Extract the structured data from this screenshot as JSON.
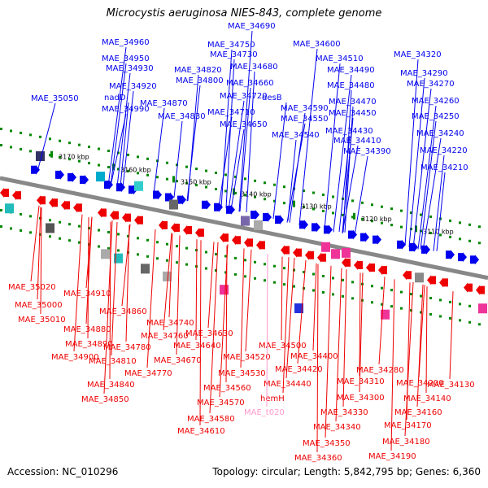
{
  "title": "Microcystis aeruginosa NIES-843, complete genome",
  "accession": "Accession: NC_010296",
  "stats": "Topology: circular; Length: 5,842,795 bp; Genes: 6,360",
  "colors": {
    "forward": "#0000ee",
    "reverse": "#ee0000",
    "rna": "#ff99cc",
    "backbone": "#888888",
    "tick": "#008800"
  },
  "scale_labels": [
    "3170 kbp",
    "3160 kbp",
    "3150 kbp",
    "3140 kbp",
    "3130 kbp",
    "3120 kbp",
    "3110 kbp"
  ],
  "top_labels": [
    "MAE_34960",
    "MAE_34950",
    "MAE_34930",
    "MAE_34920",
    "nadD",
    "MAE_35050",
    "MAE_34990",
    "MAE_34690",
    "MAE_34750",
    "MAE_34730",
    "MAE_34600",
    "MAE_34510",
    "MAE_34320",
    "MAE_34820",
    "MAE_34680",
    "MAE_34490",
    "MAE_34290",
    "MAE_34800",
    "MAE_34660",
    "MAE_34480",
    "MAE_34270",
    "MAE_34720",
    "desB",
    "MAE_34870",
    "MAE_34470",
    "MAE_34260",
    "MAE_34590",
    "MAE_34710",
    "MAE_34450",
    "MAE_34830",
    "MAE_34550",
    "MAE_34250",
    "MAE_34650",
    "MAE_34430",
    "MAE_34540",
    "MAE_34240",
    "MAE_34410",
    "MAE_34390",
    "MAE_34220",
    "MAE_34210"
  ],
  "bottom_labels": [
    "MAE_35020",
    "MAE_34910",
    "MAE_35000",
    "MAE_35010",
    "MAE_34860",
    "MAE_34880",
    "MAE_34740",
    "MAE_34890",
    "MAE_34760",
    "MAE_34630",
    "MAE_34780",
    "MAE_34640",
    "MAE_34900",
    "MAE_34810",
    "MAE_34670",
    "MAE_34500",
    "MAE_34770",
    "MAE_34520",
    "MAE_34400",
    "MAE_34840",
    "MAE_34420",
    "MAE_34280",
    "MAE_34530",
    "MAE_34310",
    "MAE_34440",
    "MAE_34200",
    "MAE_34130",
    "MAE_34560",
    "MAE_34850",
    "hemH",
    "MAE_34300",
    "MAE_34140",
    "MAE_34570",
    "MAE_34160",
    "MAE_34330",
    "MAE_t020",
    "MAE_34580",
    "MAE_34340",
    "MAE_34170",
    "MAE_34610",
    "MAE_34180",
    "MAE_34350",
    "MAE_34190",
    "MAE_34360"
  ]
}
